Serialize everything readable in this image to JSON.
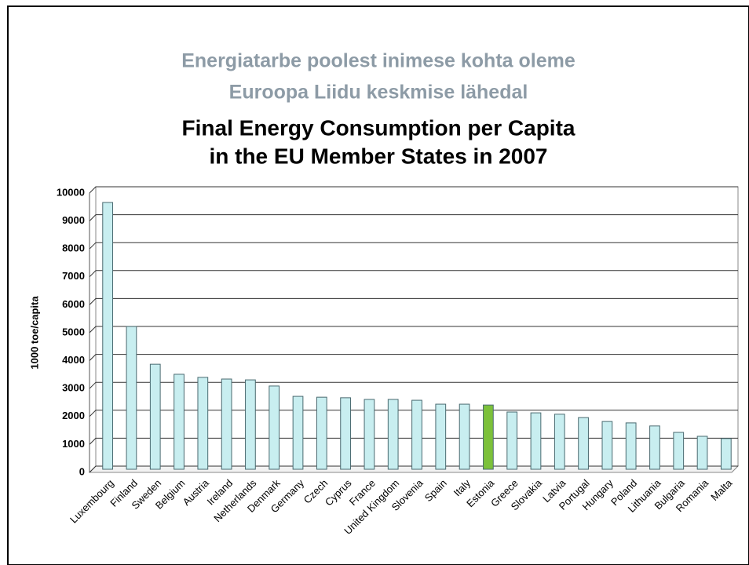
{
  "header": {
    "title_lines": [
      "Energiatarbe poolest inimese kohta oleme",
      "Euroopa Liidu keskmise lähedal"
    ]
  },
  "chart_data": {
    "type": "bar",
    "title_lines": [
      "Final Energy Consumption per Capita",
      "in the EU Member States in 2007"
    ],
    "y_label": "1000 toe/capita",
    "categories": [
      "Luxembourg",
      "Finland",
      "Sweden",
      "Belgium",
      "Austria",
      "Ireland",
      "Netherlands",
      "Denmark",
      "Germany",
      "Czech",
      "Cyprus",
      "France",
      "United Kingdom",
      "Slovenia",
      "Spain",
      "Italy",
      "Estonia",
      "Greece",
      "Slovakia",
      "Latvia",
      "Portugal",
      "Hungary",
      "Poland",
      "Lithuania",
      "Bulgaria",
      "Romania",
      "Malta"
    ],
    "values": [
      9550,
      5110,
      3760,
      3400,
      3290,
      3230,
      3200,
      2980,
      2610,
      2580,
      2560,
      2500,
      2500,
      2470,
      2330,
      2330,
      2300,
      2050,
      2020,
      1970,
      1850,
      1710,
      1660,
      1550,
      1320,
      1180,
      1100
    ],
    "colors": [
      "#c8eef0",
      "#c8eef0",
      "#c8eef0",
      "#c8eef0",
      "#c8eef0",
      "#c8eef0",
      "#c8eef0",
      "#c8eef0",
      "#c8eef0",
      "#c8eef0",
      "#c8eef0",
      "#c8eef0",
      "#c8eef0",
      "#c8eef0",
      "#c8eef0",
      "#c8eef0",
      "#7cc13a",
      "#c8eef0",
      "#c8eef0",
      "#c8eef0",
      "#c8eef0",
      "#c8eef0",
      "#c8eef0",
      "#c8eef0",
      "#c8eef0",
      "#c8eef0",
      "#c8eef0"
    ],
    "ylim": [
      0,
      10000
    ],
    "yticks": [
      0,
      1000,
      2000,
      3000,
      4000,
      5000,
      6000,
      7000,
      8000,
      9000,
      10000
    ],
    "grid": true
  }
}
